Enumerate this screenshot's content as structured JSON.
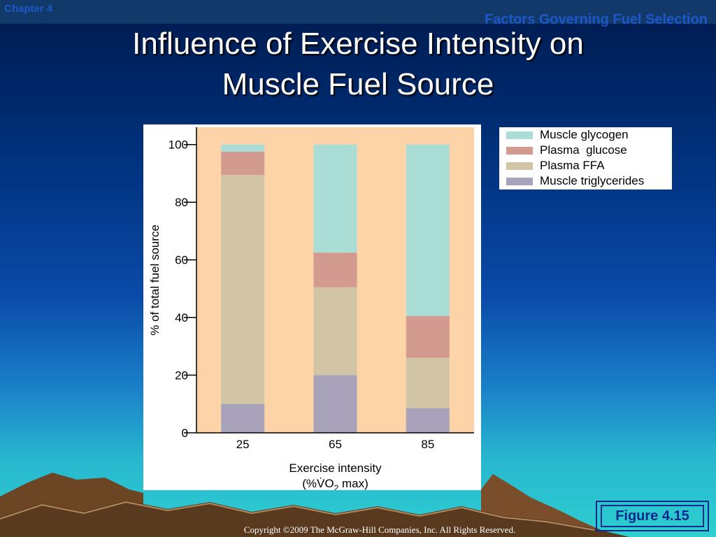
{
  "slide": {
    "chapter": "Chapter 4",
    "section": "Factors Governing Fuel Selection",
    "title_line1": "Influence of Exercise Intensity on",
    "title_line2": "Muscle Fuel Source",
    "figure_label": "Figure 4.15",
    "copyright": "Copyright ©2009 The McGraw-Hill Companies, Inc. All Rights Reserved."
  },
  "chart_data": {
    "type": "bar",
    "stacked": true,
    "categories": [
      "25",
      "65",
      "85"
    ],
    "series": [
      {
        "name": "Muscle triglycerides",
        "color": "#a8a3bb",
        "values": [
          10,
          20,
          8.5
        ]
      },
      {
        "name": "Plasma FFA",
        "color": "#d2c5a5",
        "values": [
          79.5,
          30.5,
          17.5
        ]
      },
      {
        "name": "Plasma  glucose",
        "color": "#d39a8f",
        "values": [
          8,
          12,
          14.5
        ]
      },
      {
        "name": "Muscle glycogen",
        "color": "#a9ddd5",
        "values": [
          2.5,
          37.5,
          59.5
        ]
      }
    ],
    "legend_order": [
      "Muscle glycogen",
      "Plasma  glucose",
      "Plasma FFA",
      "Muscle triglycerides"
    ],
    "xlabel_line1": "Exercise intensity",
    "xlabel_line2_prefix": "(%V̇O",
    "xlabel_line2_sub": "2",
    "xlabel_line2_suffix": " max)",
    "ylabel": "% of total fuel source",
    "yticks": [
      0,
      20,
      40,
      60,
      80,
      100
    ],
    "ylim": [
      0,
      106
    ],
    "plot_background": "#fdd3a8",
    "legend_position": "top-right"
  }
}
